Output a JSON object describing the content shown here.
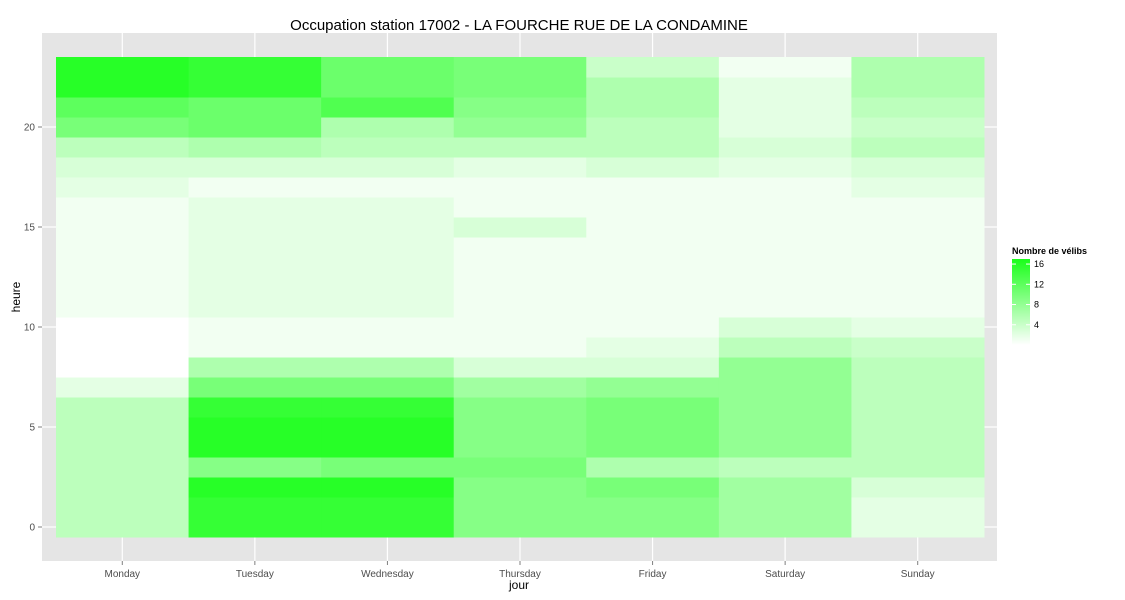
{
  "chart_data": {
    "type": "heatmap",
    "title": "Occupation station 17002 - LA FOURCHE RUE DE LA CONDAMINE",
    "xlabel": "jour",
    "ylabel": "heure",
    "x_categories": [
      "Monday",
      "Tuesday",
      "Wednesday",
      "Thursday",
      "Friday",
      "Saturday",
      "Sunday"
    ],
    "y_values": [
      0,
      1,
      2,
      3,
      4,
      5,
      6,
      7,
      8,
      9,
      10,
      11,
      12,
      13,
      14,
      15,
      16,
      17,
      18,
      19,
      20,
      21,
      22,
      23
    ],
    "y_ticks": [
      0,
      5,
      10,
      15,
      20
    ],
    "grid": true,
    "legend": {
      "title": "Nombre de vélibs",
      "position": "right",
      "ticks": [
        4,
        8,
        12,
        16
      ],
      "range": [
        0,
        17
      ]
    },
    "colors": {
      "low": "#ffffff",
      "high": "#1aff1a",
      "panel": "#e5e5e5",
      "grid": "#ffffff"
    },
    "values": [
      [
        5,
        15,
        15,
        9,
        9,
        7,
        2
      ],
      [
        5,
        15,
        15,
        9,
        9,
        7,
        2
      ],
      [
        5,
        16,
        16,
        9,
        10,
        7,
        3
      ],
      [
        5,
        9,
        10,
        10,
        6,
        5,
        5
      ],
      [
        5,
        16,
        16,
        9,
        10,
        8,
        5
      ],
      [
        5,
        16,
        16,
        9,
        10,
        8,
        5
      ],
      [
        5,
        15,
        15,
        9,
        10,
        8,
        5
      ],
      [
        2,
        10,
        10,
        7,
        8,
        8,
        5
      ],
      [
        0,
        6,
        6,
        3,
        3,
        8,
        5
      ],
      [
        0,
        1,
        1,
        1,
        2,
        5,
        4
      ],
      [
        0,
        1,
        1,
        1,
        1,
        3,
        2
      ],
      [
        1,
        2,
        2,
        1,
        1,
        1,
        1
      ],
      [
        1,
        2,
        2,
        1,
        1,
        1,
        1
      ],
      [
        1,
        2,
        2,
        1,
        1,
        1,
        1
      ],
      [
        1,
        2,
        2,
        1,
        1,
        1,
        1
      ],
      [
        1,
        2,
        2,
        3,
        1,
        1,
        1
      ],
      [
        1,
        2,
        2,
        1,
        1,
        1,
        1
      ],
      [
        2,
        1,
        1,
        1,
        1,
        1,
        2
      ],
      [
        3,
        3,
        3,
        2,
        3,
        2,
        3
      ],
      [
        5,
        6,
        5,
        5,
        5,
        3,
        5
      ],
      [
        10,
        11,
        6,
        8,
        5,
        2,
        4
      ],
      [
        12,
        11,
        13,
        9,
        6,
        2,
        5
      ],
      [
        16,
        15,
        11,
        10,
        6,
        2,
        6
      ],
      [
        16,
        15,
        11,
        10,
        4,
        1,
        6
      ]
    ]
  }
}
